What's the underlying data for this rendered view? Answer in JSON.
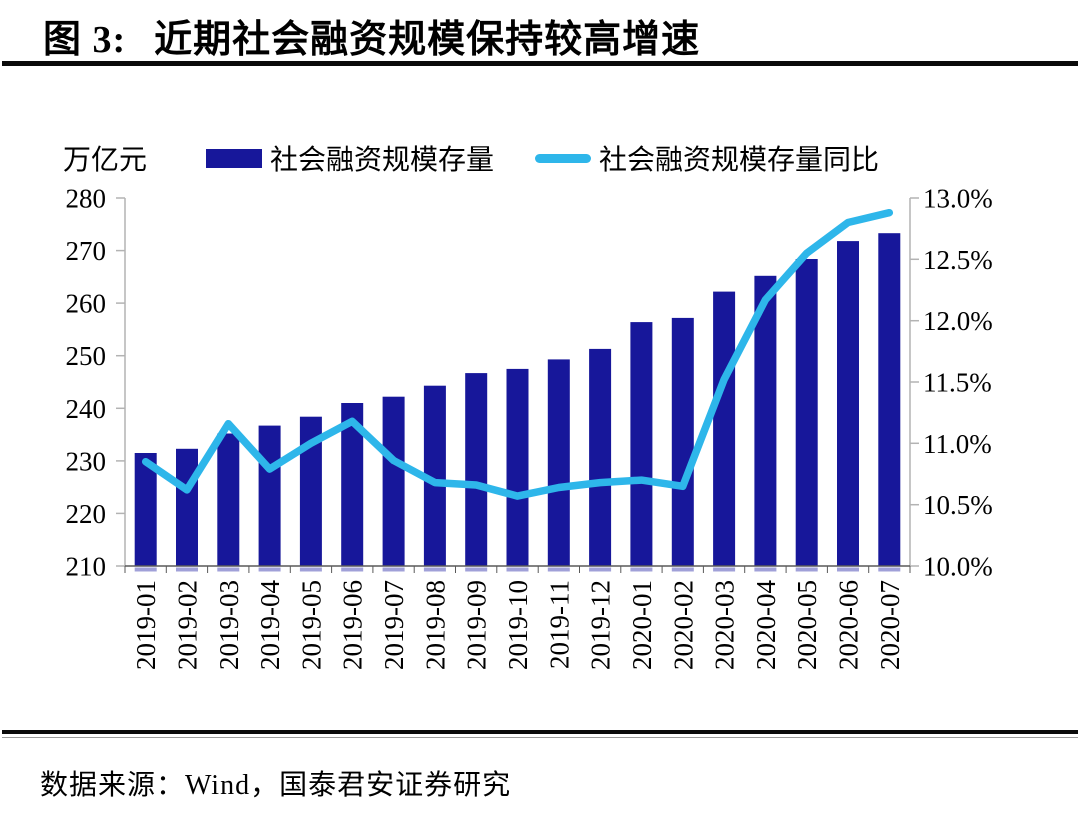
{
  "header": {
    "figure_label": "图 3:",
    "title": "近期社会融资规模保持较高增速"
  },
  "legend": {
    "unit_label": "万亿元",
    "bar_label": "社会融资规模存量",
    "line_label": "社会融资规模存量同比"
  },
  "source": {
    "text": "数据来源：Wind，国泰君安证券研究"
  },
  "colors": {
    "bar": "#17179A",
    "bar_base": "#A0A0D8",
    "line": "#2EB6EA",
    "axis_side": "#B3B3B3",
    "axis_bottom": "#595959",
    "label": "#000000"
  },
  "chart_data": {
    "type": "bar+line",
    "title": "近期社会融资规模保持较高增速",
    "categories": [
      "2019-01",
      "2019-02",
      "2019-03",
      "2019-04",
      "2019-05",
      "2019-06",
      "2019-07",
      "2019-08",
      "2019-09",
      "2019-10",
      "2019-11",
      "2019-12",
      "2020-01",
      "2020-02",
      "2020-03",
      "2020-04",
      "2020-05",
      "2020-06",
      "2020-07"
    ],
    "series": [
      {
        "name": "社会融资规模存量",
        "type": "bar",
        "axis": "left",
        "unit": "万亿元",
        "values": [
          231.5,
          232.3,
          235.2,
          236.7,
          238.4,
          241.0,
          242.2,
          244.3,
          246.7,
          247.5,
          249.3,
          251.3,
          256.4,
          257.2,
          262.2,
          265.2,
          268.4,
          271.8,
          273.3
        ]
      },
      {
        "name": "社会融资规模存量同比",
        "type": "line",
        "axis": "right",
        "unit": "%",
        "values": [
          10.85,
          10.62,
          11.16,
          10.79,
          11.0,
          11.18,
          10.86,
          10.68,
          10.66,
          10.57,
          10.64,
          10.68,
          10.7,
          10.65,
          11.52,
          12.17,
          12.55,
          12.8,
          12.88
        ]
      }
    ],
    "left_axis": {
      "min": 210,
      "max": 280,
      "tick_labels": [
        "280",
        "270",
        "260",
        "250",
        "240",
        "230",
        "220",
        "210"
      ]
    },
    "right_axis": {
      "min": 10.0,
      "max": 13.0,
      "tick_labels": [
        "13.0%",
        "12.5%",
        "12.0%",
        "11.5%",
        "11.0%",
        "10.5%",
        "10.0%"
      ]
    },
    "grid": false,
    "legend_position": "top"
  }
}
